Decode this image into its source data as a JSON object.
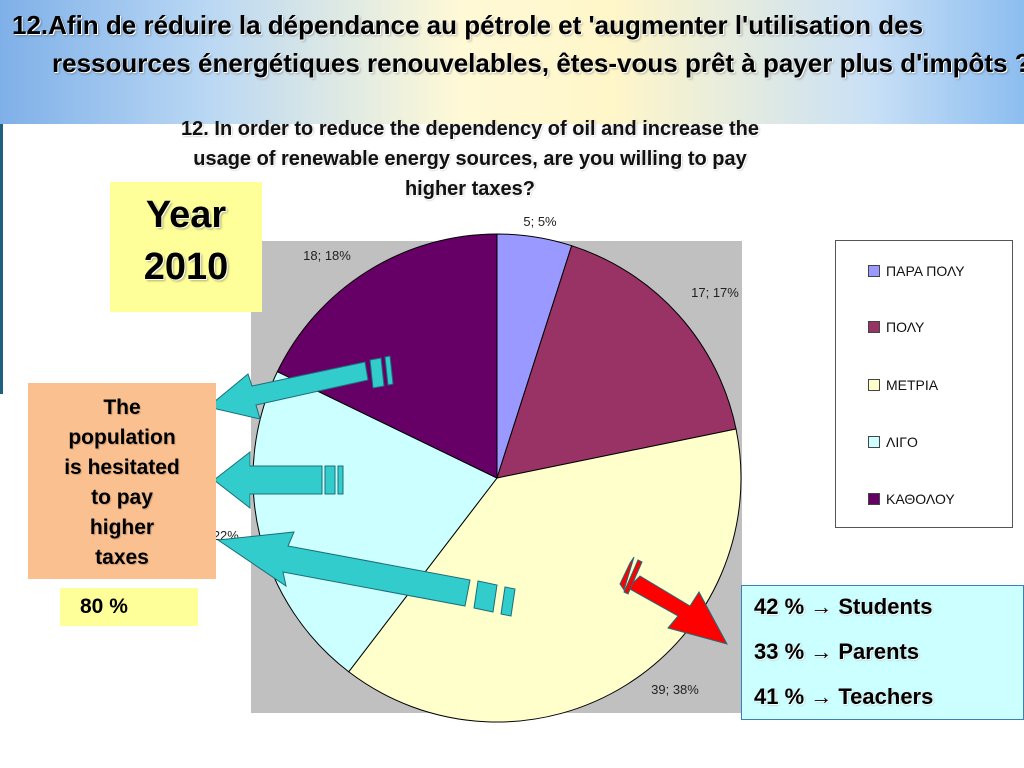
{
  "header": {
    "title": "12.Afin de réduire la dépendance au pétrole et 'augmenter l'utilisation des ressources énergétiques renouvelables, êtes-vous prêt à payer plus d'impôts ?"
  },
  "subtitle": {
    "line1": "12. In order to reduce the dependency of oil and increase the",
    "line2": "usage of renewable energy sources, are you willing to pay",
    "line3": "higher taxes?"
  },
  "year_box": {
    "label": "Year",
    "value": "2010"
  },
  "callout": {
    "lines": [
      "The",
      "population",
      "is hesitated",
      "to pay",
      "higher",
      "taxes"
    ]
  },
  "percent_box": {
    "text": "80 %"
  },
  "stats": {
    "lines": [
      "42 % → Students",
      "33 % → Parents",
      "41 % → Teachers"
    ]
  },
  "legend": {
    "items": [
      {
        "label": "ΠΑΡΑ ΠΟΛΥ",
        "color": "#9999ff"
      },
      {
        "label": "ΠΟΛΥ",
        "color": "#993366"
      },
      {
        "label": "ΜΕΤΡΙΑ",
        "color": "#ffffcc"
      },
      {
        "label": "ΛΙΓΟ",
        "color": "#ccffff"
      },
      {
        "label": "ΚΑΘΟΛΟΥ",
        "color": "#660066"
      }
    ]
  },
  "colors": {
    "plot_background": "#c0c0c0",
    "arrow_teal": "#33cccc",
    "arrow_red": "#ff0000"
  },
  "chart_data": {
    "type": "pie",
    "categories": [
      "ΠΑΡΑ ΠΟΛΥ",
      "ΠΟΛΥ",
      "ΜΕΤΡΙΑ",
      "ΛΙΓΟ",
      "ΚΑΘΟΛΟΥ"
    ],
    "values": [
      5,
      17,
      39,
      22,
      18
    ],
    "percentages": [
      5,
      17,
      38,
      22,
      18
    ],
    "data_labels": [
      "5; 5%",
      "17; 17%",
      "39; 38%",
      "22; 22%",
      "18; 18%"
    ],
    "colors": [
      "#9999ff",
      "#993366",
      "#ffffcc",
      "#ccffff",
      "#660066"
    ],
    "legend_position": "right"
  }
}
